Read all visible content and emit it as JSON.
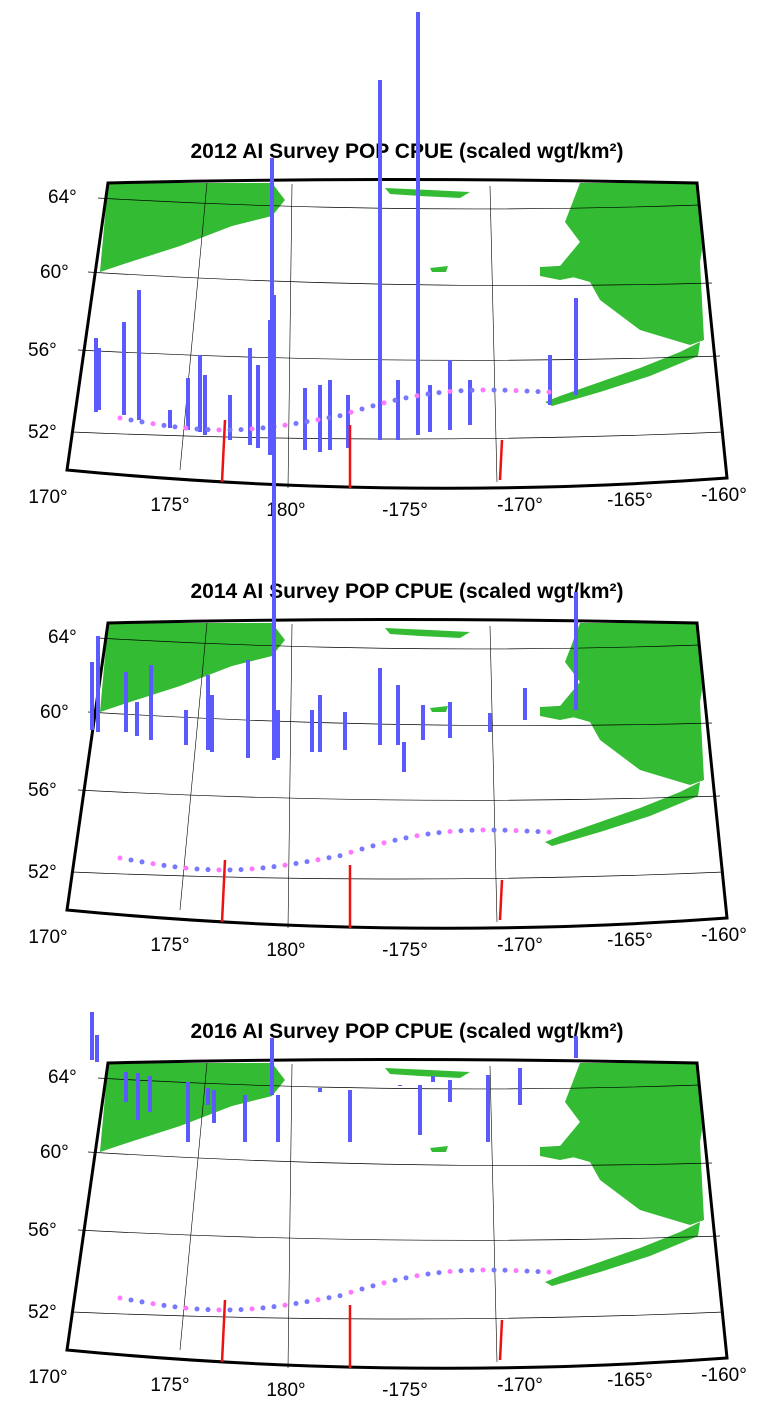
{
  "panels": [
    {
      "title": "2012 AI Survey POP CPUE (scaled wgt/km²)",
      "lat_labels": [
        "64°",
        "60°",
        "56°",
        "52°"
      ],
      "lon_labels": [
        "170°",
        "175°",
        "180°",
        "-175°",
        "-170°",
        "-165°",
        "-160°"
      ]
    },
    {
      "title": "2014 AI Survey POP CPUE (scaled wgt/km²)",
      "lat_labels": [
        "64°",
        "60°",
        "56°",
        "52°"
      ],
      "lon_labels": [
        "170°",
        "175°",
        "180°",
        "-175°",
        "-170°",
        "-165°",
        "-160°"
      ]
    },
    {
      "title": "2016 AI Survey POP CPUE (scaled wgt/km²)",
      "lat_labels": [
        "64°",
        "60°",
        "56°",
        "52°"
      ],
      "lon_labels": [
        "170°",
        "175°",
        "180°",
        "-175°",
        "-170°",
        "-165°",
        "-160°"
      ]
    }
  ]
}
